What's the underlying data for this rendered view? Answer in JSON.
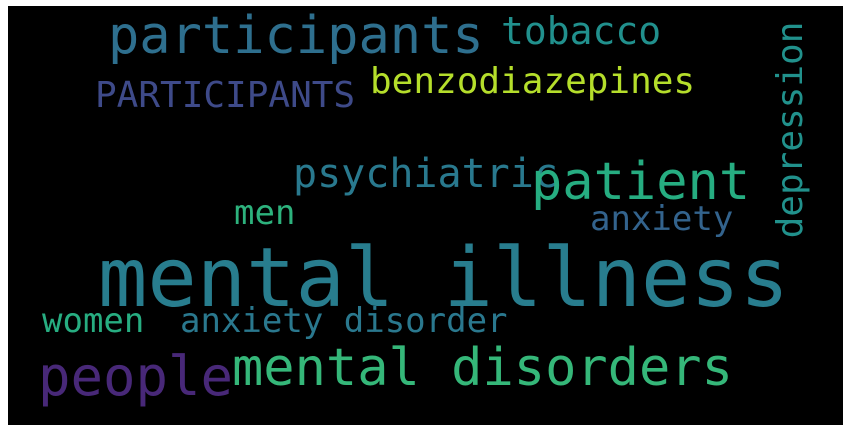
{
  "words": [
    {
      "id": "participants",
      "text": "participants",
      "color": "#2e6f8e"
    },
    {
      "id": "tobacco",
      "text": "tobacco",
      "color": "#21908d"
    },
    {
      "id": "benzodiazepines",
      "text": "benzodiazepines",
      "color": "#b5de2b"
    },
    {
      "id": "PARTICIPANTS",
      "text": "PARTICIPANTS",
      "color": "#3e4a89"
    },
    {
      "id": "depression",
      "text": "depression",
      "color": "#21918c"
    },
    {
      "id": "psychiatric",
      "text": "psychiatric",
      "color": "#29798e"
    },
    {
      "id": "patient",
      "text": "patient",
      "color": "#26ad81"
    },
    {
      "id": "men",
      "text": "men",
      "color": "#2db27d"
    },
    {
      "id": "anxiety",
      "text": "anxiety",
      "color": "#33638d"
    },
    {
      "id": "mental-illness",
      "text": "mental illness",
      "color": "#287d8e"
    },
    {
      "id": "women",
      "text": "women",
      "color": "#27ad81"
    },
    {
      "id": "anxiety-disorder",
      "text": "anxiety disorder",
      "color": "#2a788e"
    },
    {
      "id": "people",
      "text": "people",
      "color": "#482878"
    },
    {
      "id": "mental-disorders",
      "text": "mental disorders",
      "color": "#35b779"
    }
  ]
}
